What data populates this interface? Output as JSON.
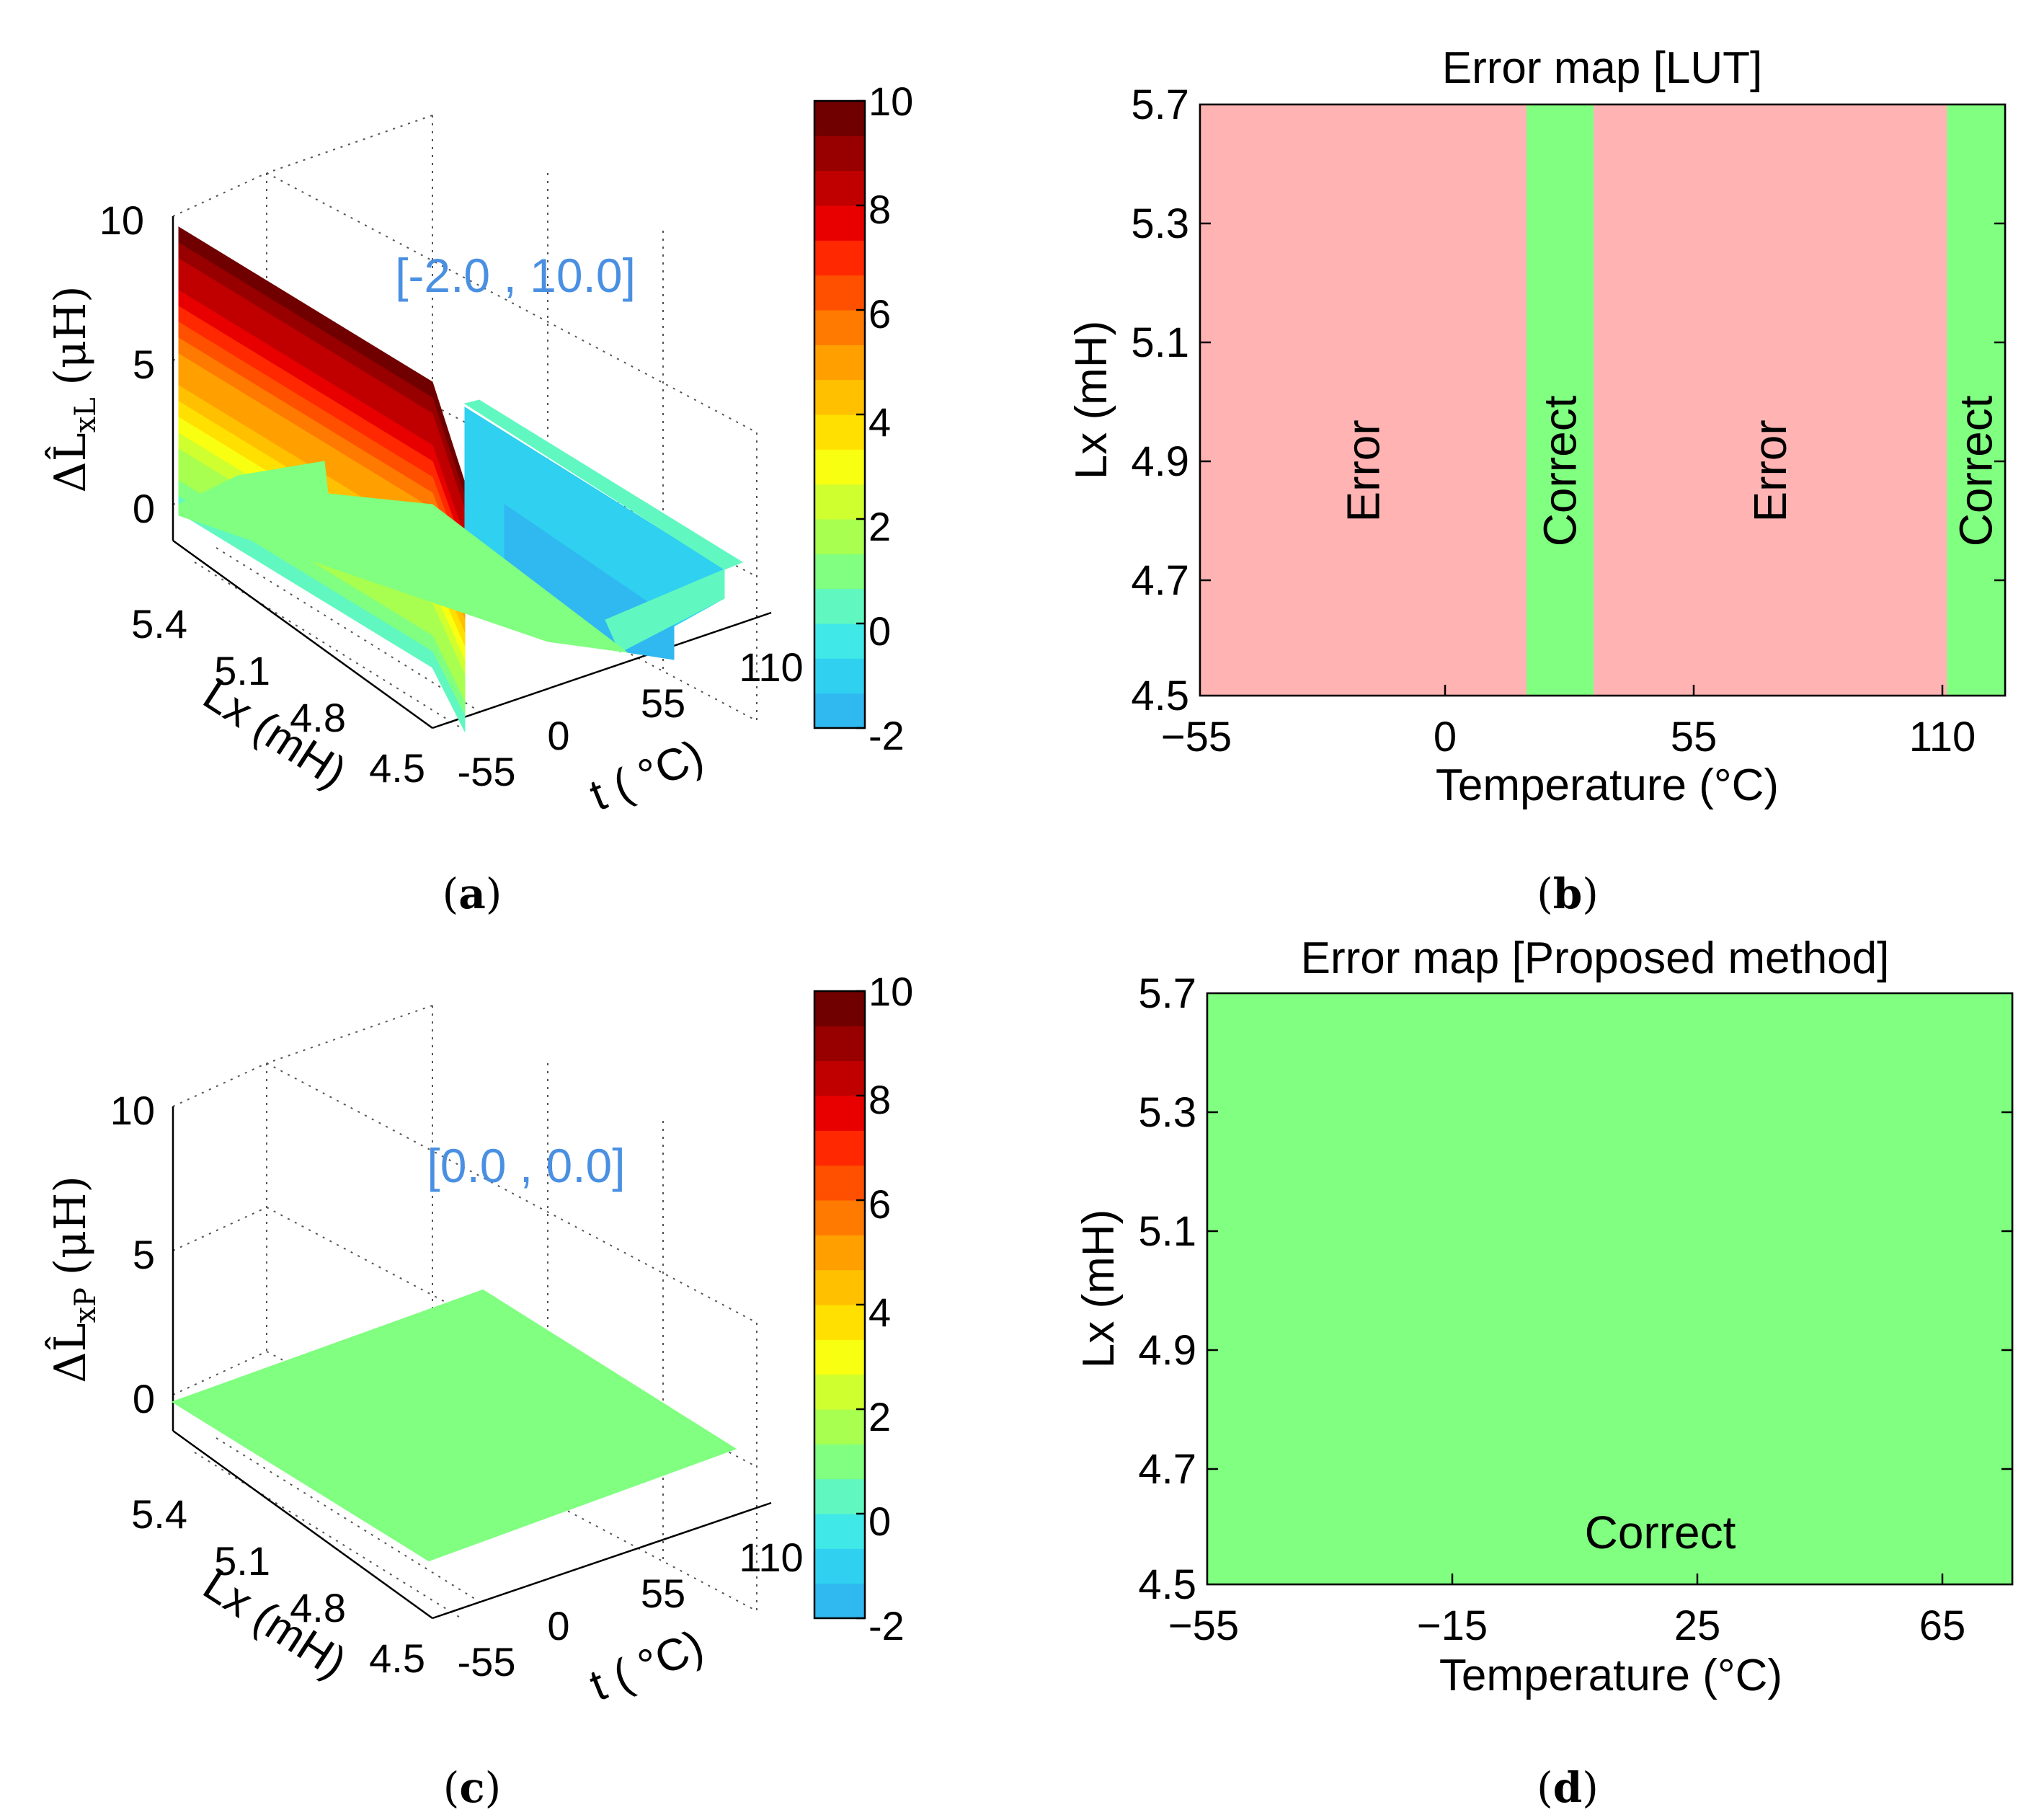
{
  "chart_data": [
    {
      "id": "a",
      "type": "surface3d",
      "caption": "a",
      "annotation": "[-2.0 , 10.0]",
      "zlabel_prefix": "ΔL̂",
      "zlabel_subscript": "xL",
      "zlabel_suffix": "(μH)",
      "ylabel": "Lx (mH)",
      "xlabel": "t ( °C)",
      "z_ticks": [
        "10",
        "5",
        "0"
      ],
      "y_ticks": [
        "5.4",
        "5.1",
        "4.8",
        "4.5"
      ],
      "x_ticks": [
        "-55",
        "0",
        "55",
        "110"
      ],
      "x_range": [
        -55,
        125
      ],
      "y_range": [
        4.5,
        5.7
      ],
      "z_range": [
        -2,
        10
      ],
      "surface_note": "Error surface is 10 at t=-55 and decreases linearly to about 0 near 20 °C, negative (about -2) between about 20 °C and 35 °C, and about 0 near 110-125 °C",
      "colorbar": {
        "ticks": [
          "10",
          "8",
          "6",
          "4",
          "2",
          "0",
          "-2"
        ],
        "range": [
          -2,
          10
        ]
      }
    },
    {
      "id": "b",
      "type": "heatmap",
      "caption": "b",
      "title": "Error map [LUT]",
      "xlabel": "Temperature (°C)",
      "ylabel": "Lx (mH)",
      "x_ticks": [
        "−55",
        "0",
        "55",
        "110"
      ],
      "y_ticks": [
        "5.7",
        "5.3",
        "5.1",
        "4.9",
        "4.7",
        "4.5"
      ],
      "x_range": [
        -55,
        125
      ],
      "regions": [
        {
          "label": "Error",
          "from": -55,
          "to": 18,
          "status": "error"
        },
        {
          "label": "Correct",
          "from": 18,
          "to": 33,
          "status": "correct"
        },
        {
          "label": "Error",
          "from": 33,
          "to": 112,
          "status": "error"
        },
        {
          "label": "Correct",
          "from": 112,
          "to": 125,
          "status": "correct"
        }
      ],
      "colors": {
        "error": "#ffb3b3",
        "correct": "#80ff80"
      }
    },
    {
      "id": "c",
      "type": "surface3d",
      "caption": "c",
      "annotation": "[0.0 , 0.0]",
      "zlabel_prefix": "ΔL̂",
      "zlabel_subscript": "xP",
      "zlabel_suffix": "(μH)",
      "ylabel": "Lx (mH)",
      "xlabel": "t ( °C)",
      "z_ticks": [
        "10",
        "5",
        "0"
      ],
      "y_ticks": [
        "5.4",
        "5.1",
        "4.8",
        "4.5"
      ],
      "x_ticks": [
        "-55",
        "0",
        "55",
        "110"
      ],
      "x_range": [
        -55,
        125
      ],
      "y_range": [
        4.5,
        5.7
      ],
      "z_range": [
        -2,
        10
      ],
      "surface_note": "Flat surface at 0 everywhere",
      "colorbar": {
        "ticks": [
          "10",
          "8",
          "6",
          "4",
          "2",
          "0",
          "-2"
        ],
        "range": [
          -2,
          10
        ]
      }
    },
    {
      "id": "d",
      "type": "heatmap",
      "caption": "d",
      "title": "Error map [Proposed method]",
      "xlabel": "Temperature (°C)",
      "ylabel": "Lx (mH)",
      "x_ticks": [
        "−55",
        "−15",
        "25",
        "65"
      ],
      "y_ticks": [
        "5.7",
        "5.3",
        "5.1",
        "4.9",
        "4.7",
        "4.5"
      ],
      "x_range": [
        -55,
        80
      ],
      "regions": [
        {
          "label": "Correct",
          "from": -55,
          "to": 80,
          "status": "correct"
        }
      ],
      "colors": {
        "error": "#ffb3b3",
        "correct": "#80ff80"
      }
    }
  ],
  "colormap": [
    "#30b8f0",
    "#2fd0f0",
    "#40e8e8",
    "#60f8c0",
    "#80ff80",
    "#a8ff50",
    "#d0ff30",
    "#f8ff10",
    "#ffe000",
    "#ffc000",
    "#ffa000",
    "#ff7a00",
    "#ff5000",
    "#ff2800",
    "#e80000",
    "#c00000",
    "#980000",
    "#700000"
  ],
  "annotation_color": "#4a90e2"
}
